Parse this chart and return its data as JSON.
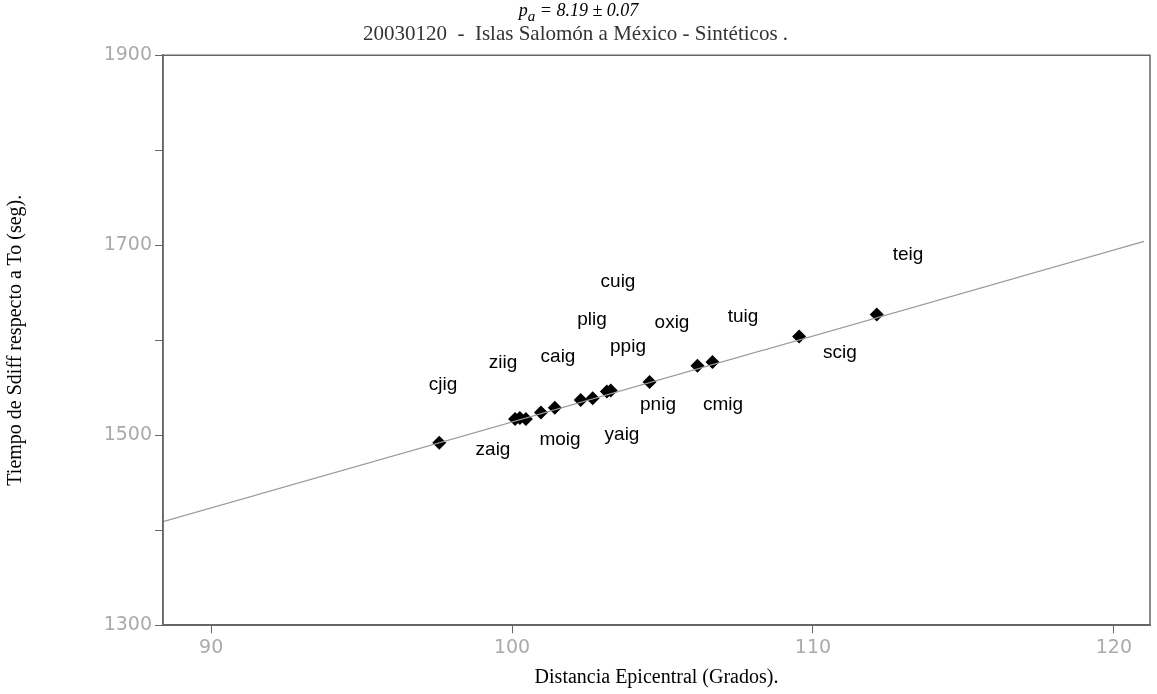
{
  "chart_data": {
    "type": "scatter",
    "title": "20030120  -  Islas Salomón a México - Sintéticos .",
    "xlabel": "Distancia Epicentral (Grados).",
    "ylabel": "Tiempo de Sdiff respecto a To (seg).",
    "xlim": [
      88.4,
      121.2
    ],
    "ylim": [
      1300,
      1900
    ],
    "xticks": [
      90,
      100,
      110,
      120
    ],
    "yticks": [
      1300,
      {
        "value": 1400,
        "label": null
      },
      1500,
      {
        "value": 1600,
        "label": null
      },
      1700,
      {
        "value": 1800,
        "label": null
      },
      1900
    ],
    "marker": "diamond",
    "series": [
      {
        "type": "line",
        "color": "#999999",
        "marker": "none",
        "x": [
          88.4,
          121.0
        ],
        "values": [
          1409,
          1704
        ]
      },
      {
        "color": "#000000",
        "x": [
          97.58,
          100.1,
          100.26,
          100.46,
          100.96,
          101.42,
          102.28,
          102.68,
          103.15,
          103.28,
          104.57,
          106.16,
          106.66,
          109.54,
          112.12
        ],
        "values": [
          1492,
          1517,
          1518,
          1517,
          1524,
          1529,
          1537,
          1539,
          1546,
          1547,
          1556,
          1573,
          1577,
          1604,
          1627
        ]
      }
    ],
    "annotations": [
      "p$_{a}$ = 8.19 ± 0.07",
      "cjig",
      "zaig",
      "ziig",
      "moig",
      "caig",
      "yaig",
      "plig",
      "ppig",
      "cuig",
      "pnig",
      "oxig",
      "cmig",
      "tuig",
      "scig",
      "teig"
    ]
  }
}
